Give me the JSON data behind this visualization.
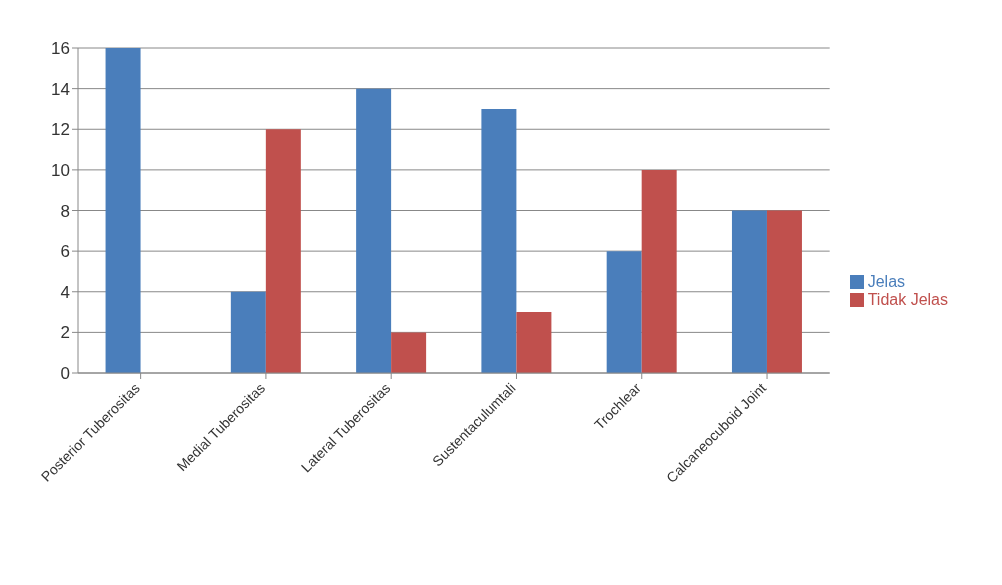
{
  "chart_data": {
    "type": "bar",
    "categories": [
      "Posterior Tuberositas",
      "Medial Tuberositas",
      "Lateral Tuberositas",
      "Sustentaculumtali",
      "Trochlear",
      "Calcaneocuboid Joint"
    ],
    "series": [
      {
        "name": "Jelas",
        "color": "#4a7ebb",
        "values": [
          16,
          4,
          14,
          13,
          6,
          8
        ]
      },
      {
        "name": "Tidak Jelas",
        "color": "#c0504d",
        "values": [
          0,
          12,
          2,
          3,
          10,
          8
        ]
      }
    ],
    "ylim": [
      0,
      16
    ],
    "yticks": [
      0,
      2,
      4,
      6,
      8,
      10,
      12,
      14,
      16
    ],
    "grid": "y",
    "legend": "right"
  }
}
